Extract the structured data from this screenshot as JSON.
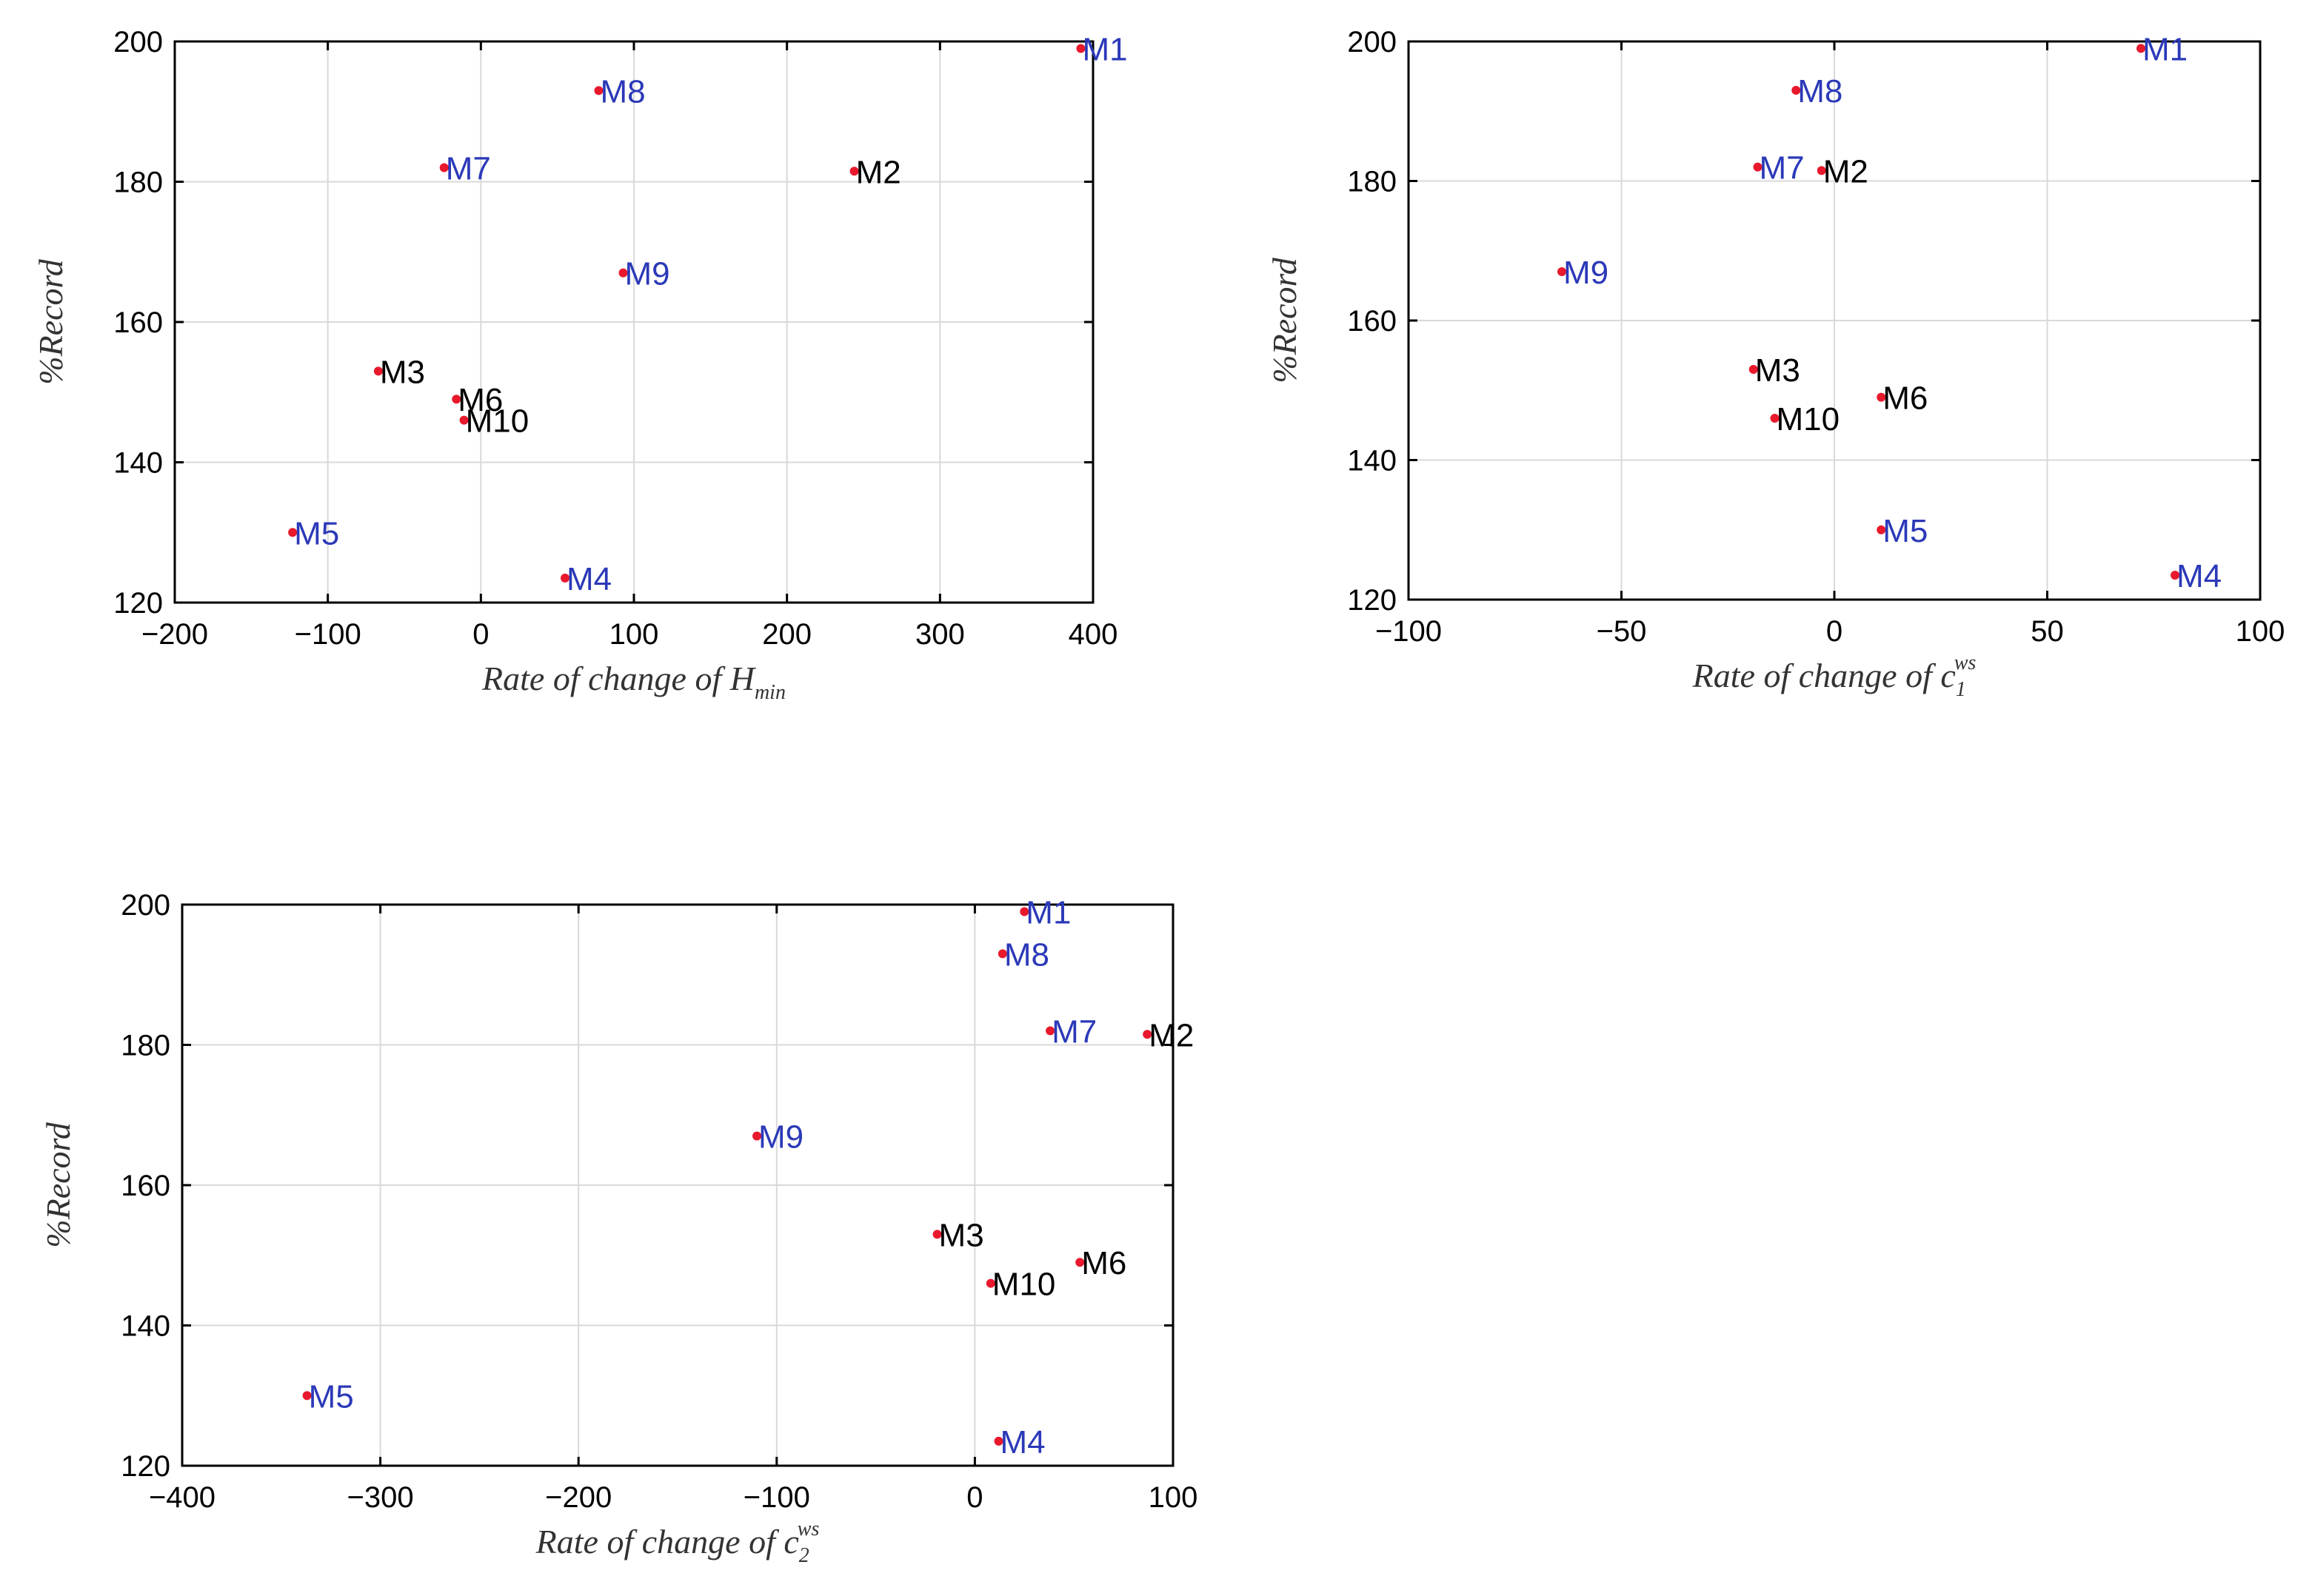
{
  "colors": {
    "marker": "#e8192c",
    "highlight": "#2b39b8",
    "normal": "#000000"
  },
  "chart_data": [
    {
      "type": "scatter",
      "xlabel": {
        "main": "Rate of change of H",
        "sub": "min",
        "sup": ""
      },
      "ylabel": "%Record",
      "xlim": [
        -200,
        400
      ],
      "ylim": [
        120,
        200
      ],
      "xticks": [
        -200,
        -100,
        0,
        100,
        200,
        300,
        400
      ],
      "yticks": [
        120,
        140,
        160,
        180,
        200
      ],
      "grid": true,
      "points": [
        {
          "label": "M1",
          "x": 392,
          "y": 199,
          "highlight": true
        },
        {
          "label": "M2",
          "x": 244,
          "y": 181.5,
          "highlight": false
        },
        {
          "label": "M3",
          "x": -67,
          "y": 153,
          "highlight": false
        },
        {
          "label": "M4",
          "x": 55,
          "y": 123.5,
          "highlight": true
        },
        {
          "label": "M5",
          "x": -123,
          "y": 130,
          "highlight": true
        },
        {
          "label": "M6",
          "x": -16,
          "y": 149,
          "highlight": false
        },
        {
          "label": "M7",
          "x": -24,
          "y": 182,
          "highlight": true
        },
        {
          "label": "M8",
          "x": 77,
          "y": 193,
          "highlight": true
        },
        {
          "label": "M9",
          "x": 93,
          "y": 167,
          "highlight": true
        },
        {
          "label": "M10",
          "x": -11,
          "y": 146,
          "highlight": false
        }
      ]
    },
    {
      "type": "scatter",
      "xlabel": {
        "main": "Rate of change of c",
        "sub": "1",
        "sup": "ws"
      },
      "ylabel": "%Record",
      "xlim": [
        -100,
        100
      ],
      "ylim": [
        120,
        200
      ],
      "xticks": [
        -100,
        -50,
        0,
        50,
        100
      ],
      "yticks": [
        120,
        140,
        160,
        180,
        200
      ],
      "grid": true,
      "points": [
        {
          "label": "M1",
          "x": 72,
          "y": 199,
          "highlight": true
        },
        {
          "label": "M2",
          "x": -3,
          "y": 181.5,
          "highlight": false
        },
        {
          "label": "M3",
          "x": -19,
          "y": 153,
          "highlight": false
        },
        {
          "label": "M4",
          "x": 80,
          "y": 123.5,
          "highlight": true
        },
        {
          "label": "M5",
          "x": 11,
          "y": 130,
          "highlight": true
        },
        {
          "label": "M6",
          "x": 11,
          "y": 149,
          "highlight": false
        },
        {
          "label": "M7",
          "x": -18,
          "y": 182,
          "highlight": true
        },
        {
          "label": "M8",
          "x": -9,
          "y": 193,
          "highlight": true
        },
        {
          "label": "M9",
          "x": -64,
          "y": 167,
          "highlight": true
        },
        {
          "label": "M10",
          "x": -14,
          "y": 146,
          "highlight": false
        }
      ]
    },
    {
      "type": "scatter",
      "xlabel": {
        "main": "Rate of change of c",
        "sub": "2",
        "sup": "ws"
      },
      "ylabel": "%Record",
      "xlim": [
        -400,
        100
      ],
      "ylim": [
        120,
        200
      ],
      "xticks": [
        -400,
        -300,
        -200,
        -100,
        0,
        100
      ],
      "yticks": [
        120,
        140,
        160,
        180,
        200
      ],
      "grid": true,
      "points": [
        {
          "label": "M1",
          "x": 25,
          "y": 199,
          "highlight": true
        },
        {
          "label": "M2",
          "x": 87,
          "y": 181.5,
          "highlight": false
        },
        {
          "label": "M3",
          "x": -19,
          "y": 153,
          "highlight": false
        },
        {
          "label": "M4",
          "x": 12,
          "y": 123.5,
          "highlight": true
        },
        {
          "label": "M5",
          "x": -337,
          "y": 130,
          "highlight": true
        },
        {
          "label": "M6",
          "x": 53,
          "y": 149,
          "highlight": false
        },
        {
          "label": "M7",
          "x": 38,
          "y": 182,
          "highlight": true
        },
        {
          "label": "M8",
          "x": 14,
          "y": 193,
          "highlight": true
        },
        {
          "label": "M9",
          "x": -110,
          "y": 167,
          "highlight": true
        },
        {
          "label": "M10",
          "x": 8,
          "y": 146,
          "highlight": false
        }
      ]
    }
  ]
}
